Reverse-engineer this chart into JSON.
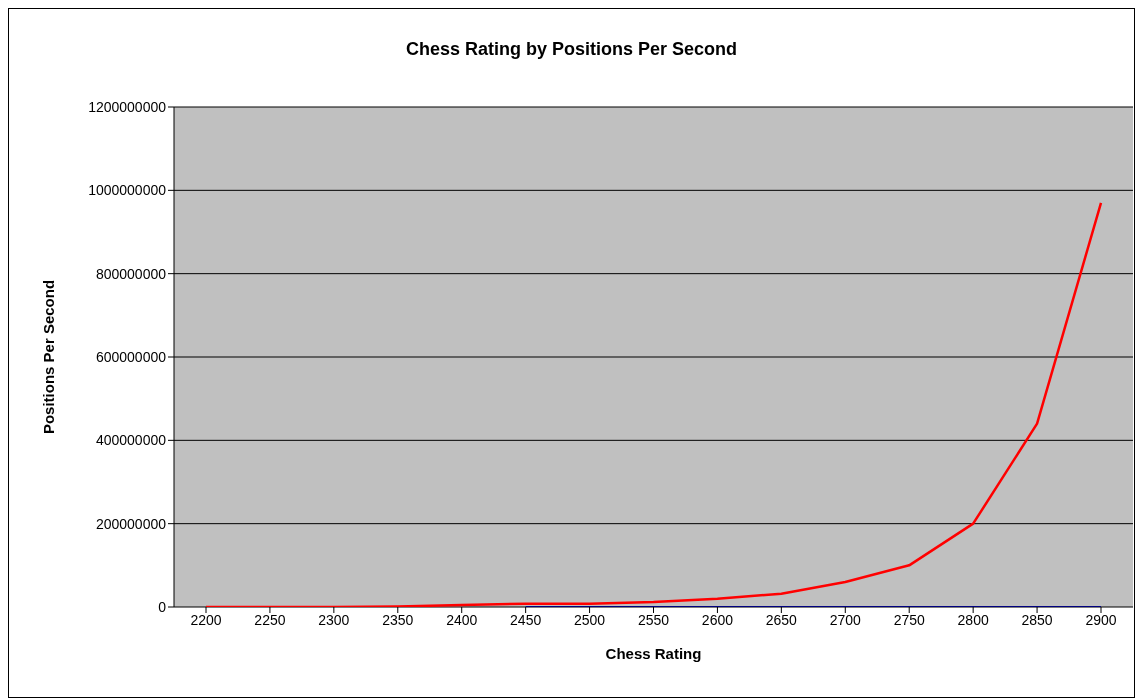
{
  "chart_data": {
    "type": "line",
    "title": "Chess Rating by Positions Per Second",
    "xlabel": "Chess Rating",
    "ylabel": "Positions Per Second",
    "categories": [
      "2200",
      "2250",
      "2300",
      "2350",
      "2400",
      "2450",
      "2500",
      "2550",
      "2600",
      "2650",
      "2700",
      "2750",
      "2800",
      "2850",
      "2900"
    ],
    "series": [
      {
        "color": "#ff0000",
        "values": [
          0,
          0,
          0,
          1000000,
          5000000,
          8000000,
          8000000,
          12000000,
          20000000,
          32000000,
          60000000,
          100000000,
          200000000,
          440000000,
          970000000
        ]
      },
      {
        "color": "#000080",
        "values": [
          null,
          null,
          null,
          null,
          null,
          0,
          0,
          0,
          0,
          0,
          0,
          0,
          0,
          0,
          0
        ]
      }
    ],
    "ylim": [
      0,
      1200000000
    ],
    "yticks": [
      0,
      200000000,
      400000000,
      600000000,
      800000000,
      1000000000,
      1200000000
    ],
    "grid": "y",
    "legend": false,
    "marker": "none",
    "line_style": "solid"
  }
}
